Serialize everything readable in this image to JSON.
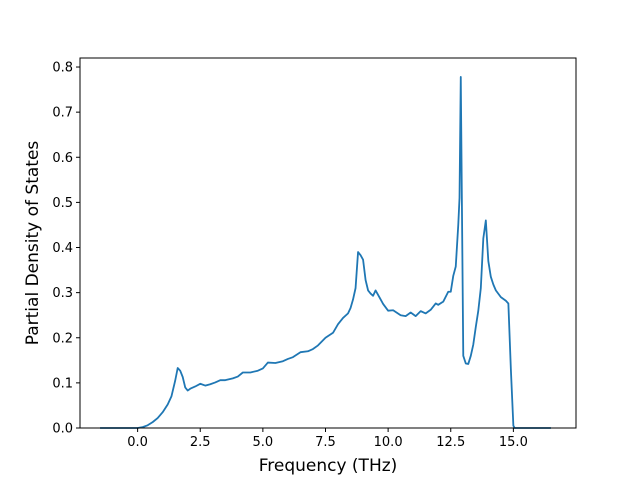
{
  "chart_data": {
    "type": "line",
    "title": "",
    "xlabel": "Frequency (THz)",
    "ylabel": "Partial Density of States",
    "xlim": [
      -2.3,
      17.5
    ],
    "ylim": [
      0.0,
      0.82
    ],
    "xticks": [
      0.0,
      2.5,
      5.0,
      7.5,
      10.0,
      12.5,
      15.0
    ],
    "xtick_labels": [
      "0.0",
      "2.5",
      "5.0",
      "7.5",
      "10.0",
      "12.5",
      "15.0"
    ],
    "yticks": [
      0.0,
      0.1,
      0.2,
      0.3,
      0.4,
      0.5,
      0.6,
      0.7,
      0.8
    ],
    "ytick_labels": [
      "0.0",
      "0.1",
      "0.2",
      "0.3",
      "0.4",
      "0.5",
      "0.6",
      "0.7",
      "0.8"
    ],
    "grid": false,
    "line_color": "#1f77b4",
    "series": [
      {
        "x": [
          -1.5,
          -1.0,
          -0.5,
          0.0,
          0.2,
          0.4,
          0.6,
          0.8,
          1.0,
          1.2,
          1.35,
          1.5,
          1.6,
          1.7,
          1.8,
          1.9,
          2.0,
          2.1,
          2.3,
          2.5,
          2.7,
          2.9,
          3.1,
          3.3,
          3.5,
          3.8,
          4.0,
          4.2,
          4.5,
          4.8,
          5.0,
          5.2,
          5.5,
          5.8,
          6.0,
          6.2,
          6.5,
          6.8,
          7.0,
          7.2,
          7.5,
          7.8,
          8.0,
          8.2,
          8.4,
          8.5,
          8.6,
          8.7,
          8.8,
          8.9,
          9.0,
          9.1,
          9.2,
          9.3,
          9.4,
          9.5,
          9.8,
          10.0,
          10.2,
          10.5,
          10.7,
          10.9,
          11.1,
          11.3,
          11.5,
          11.7,
          11.9,
          12.0,
          12.2,
          12.4,
          12.5,
          12.6,
          12.7,
          12.8,
          12.85,
          12.9,
          13.0,
          13.1,
          13.2,
          13.3,
          13.4,
          13.5,
          13.6,
          13.7,
          13.8,
          13.9,
          14.0,
          14.1,
          14.2,
          14.3,
          14.5,
          14.7,
          14.8,
          14.9,
          15.0,
          15.05,
          15.5,
          16.0,
          16.5
        ],
        "y": [
          0.0,
          0.0,
          0.0,
          0.0,
          0.002,
          0.006,
          0.013,
          0.022,
          0.035,
          0.052,
          0.07,
          0.105,
          0.133,
          0.127,
          0.113,
          0.09,
          0.083,
          0.087,
          0.092,
          0.098,
          0.094,
          0.097,
          0.101,
          0.106,
          0.106,
          0.11,
          0.114,
          0.123,
          0.123,
          0.127,
          0.132,
          0.145,
          0.144,
          0.148,
          0.153,
          0.157,
          0.168,
          0.17,
          0.175,
          0.183,
          0.2,
          0.211,
          0.23,
          0.244,
          0.254,
          0.266,
          0.285,
          0.31,
          0.39,
          0.383,
          0.373,
          0.328,
          0.305,
          0.298,
          0.293,
          0.305,
          0.275,
          0.26,
          0.261,
          0.25,
          0.248,
          0.256,
          0.248,
          0.259,
          0.254,
          0.262,
          0.276,
          0.273,
          0.28,
          0.302,
          0.302,
          0.337,
          0.358,
          0.45,
          0.51,
          0.778,
          0.16,
          0.143,
          0.142,
          0.16,
          0.185,
          0.224,
          0.26,
          0.31,
          0.42,
          0.46,
          0.37,
          0.335,
          0.318,
          0.305,
          0.29,
          0.282,
          0.276,
          0.13,
          0.005,
          0.0,
          0.0,
          0.0,
          0.0
        ]
      }
    ]
  }
}
